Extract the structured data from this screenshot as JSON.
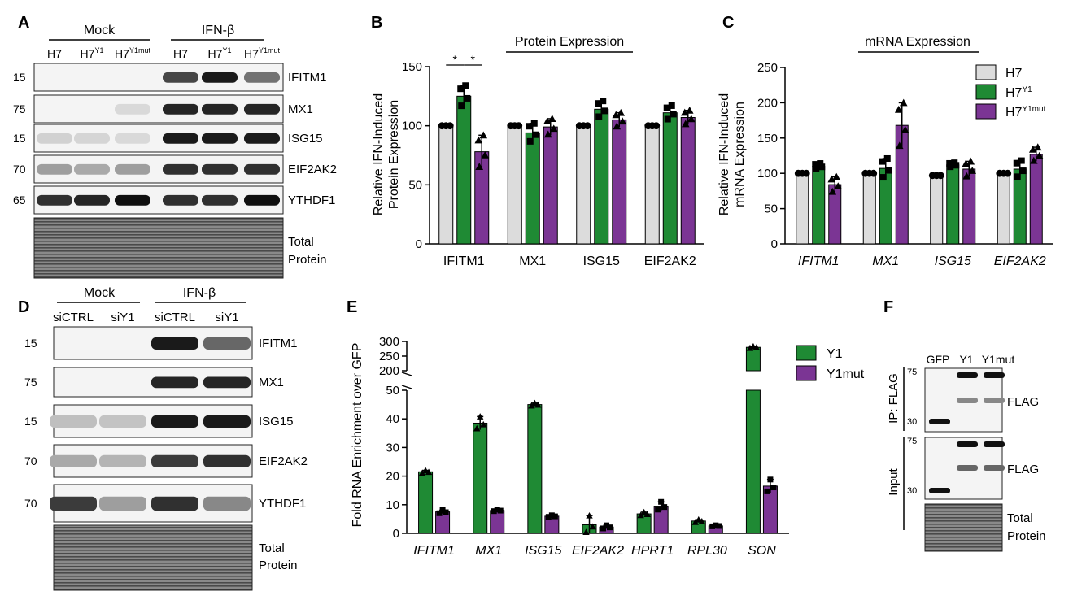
{
  "panels": {
    "A": {
      "letter": "A",
      "group_mock": "Mock",
      "group_ifn": "IFN-β",
      "lanes": [
        {
          "base": "H7",
          "sup": ""
        },
        {
          "base": "H7",
          "sup": "Y1"
        },
        {
          "base": "H7",
          "sup": "Y1mut"
        },
        {
          "base": "H7",
          "sup": ""
        },
        {
          "base": "H7",
          "sup": "Y1"
        },
        {
          "base": "H7",
          "sup": "Y1mut"
        }
      ],
      "blots": [
        {
          "label": "IFITM1",
          "mw": "15"
        },
        {
          "label": "MX1",
          "mw": "75"
        },
        {
          "label": "ISG15",
          "mw": "15"
        },
        {
          "label": "EIF2AK2",
          "mw": "70"
        },
        {
          "label": "YTHDF1",
          "mw": "65"
        },
        {
          "label": "Total Protein",
          "mw": ""
        }
      ]
    },
    "B": {
      "letter": "B"
    },
    "C": {
      "letter": "C"
    },
    "D": {
      "letter": "D",
      "group_mock": "Mock",
      "group_ifn": "IFN-β",
      "lanes": [
        "siCTRL",
        "siY1",
        "siCTRL",
        "siY1"
      ],
      "blots": [
        {
          "label": "IFITM1",
          "mw": "15"
        },
        {
          "label": "MX1",
          "mw": "75"
        },
        {
          "label": "ISG15",
          "mw": "15"
        },
        {
          "label": "EIF2AK2",
          "mw": "70"
        },
        {
          "label": "YTHDF1",
          "mw": "70"
        },
        {
          "label": "Total Protein",
          "mw": ""
        }
      ]
    },
    "E": {
      "letter": "E"
    },
    "F": {
      "letter": "F",
      "lanes": [
        "GFP",
        "Y1",
        "Y1mut"
      ],
      "ip_label": "IP: FLAG",
      "input_label": "Input",
      "blots": [
        {
          "label": "FLAG",
          "mw_top": "75",
          "mw_bottom": "30"
        },
        {
          "label": "FLAG",
          "mw_top": "75",
          "mw_bottom": "30"
        },
        {
          "label": "Total Protein"
        }
      ]
    }
  },
  "chart_data": [
    {
      "panel": "B",
      "type": "bar",
      "title": "Protein Expression",
      "xlabel": "",
      "ylabel": "Relative IFN-Induced Protein Expression",
      "ylim": [
        0,
        150
      ],
      "yticks": [
        0,
        50,
        100,
        150
      ],
      "categories": [
        "IFITM1",
        "MX1",
        "ISG15",
        "EIF2AK2"
      ],
      "italic_categories": false,
      "legend": "none",
      "series": [
        {
          "name": "H7",
          "color": "#dcdcdc",
          "marker": "circle",
          "values": [
            100,
            100,
            100,
            100
          ],
          "errors": [
            0,
            0,
            0,
            0
          ]
        },
        {
          "name": "H7Y1",
          "color": "#1f8a34",
          "marker": "square",
          "values": [
            125,
            94,
            114,
            111
          ],
          "errors": [
            9,
            8,
            7,
            6
          ]
        },
        {
          "name": "H7Y1mut",
          "color": "#7b3594",
          "marker": "triangle",
          "values": [
            78,
            99,
            105,
            107
          ],
          "errors": [
            14,
            7,
            6,
            6
          ]
        }
      ],
      "significance": [
        {
          "label": "*",
          "category": "IFITM1",
          "from": "H7",
          "to": "H7Y1"
        },
        {
          "label": "*",
          "category": "IFITM1",
          "from": "H7Y1",
          "to": "H7Y1mut"
        }
      ]
    },
    {
      "panel": "C",
      "type": "bar",
      "title": "mRNA Expression",
      "xlabel": "",
      "ylabel": "Relative IFN-Induced mRNA Expression",
      "ylim": [
        0,
        250
      ],
      "yticks": [
        0,
        50,
        100,
        150,
        200,
        250
      ],
      "categories": [
        "IFITM1",
        "MX1",
        "ISG15",
        "EIF2AK2"
      ],
      "italic_categories": true,
      "legend": "top-right",
      "series": [
        {
          "name": "H7",
          "legend_base": "H7",
          "legend_sup": "",
          "color": "#dcdcdc",
          "marker": "circle",
          "values": [
            100,
            100,
            97,
            100
          ],
          "errors": [
            0,
            0,
            0,
            0
          ]
        },
        {
          "name": "H7Y1",
          "legend_base": "H7",
          "legend_sup": "Y1",
          "color": "#1f8a34",
          "marker": "square",
          "values": [
            110,
            107,
            112,
            106
          ],
          "errors": [
            4,
            14,
            3,
            12
          ]
        },
        {
          "name": "H7Y1mut",
          "legend_base": "H7",
          "legend_sup": "Y1mut",
          "color": "#7b3594",
          "marker": "triangle",
          "values": [
            84,
            168,
            106,
            127
          ],
          "errors": [
            11,
            32,
            11,
            10
          ]
        }
      ]
    },
    {
      "panel": "E",
      "type": "bar",
      "title": "",
      "xlabel": "",
      "ylabel": "Fold RNA Enrichment over GFP",
      "ylim_lower": [
        0,
        50
      ],
      "ylim_upper": [
        200,
        300
      ],
      "yticks_lower": [
        0,
        10,
        20,
        30,
        40,
        50
      ],
      "yticks_upper": [
        200,
        250,
        300
      ],
      "categories": [
        "IFITM1",
        "MX1",
        "ISG15",
        "EIF2AK2",
        "HPRT1",
        "RPL30",
        "SON"
      ],
      "italic_categories": true,
      "legend": "top-right",
      "series": [
        {
          "name": "Y1",
          "color": "#1f8a34",
          "marker": "triangle",
          "values": [
            21.5,
            38.5,
            45,
            3,
            6.8,
            4.3,
            280
          ],
          "errors": [
            0.5,
            2.3,
            0.5,
            3.2,
            0.6,
            0.5,
            3
          ]
        },
        {
          "name": "Y1mut",
          "color": "#7b3594",
          "marker": "square",
          "values": [
            7.5,
            8.0,
            6.0,
            2.2,
            9.5,
            2.6,
            16.5
          ],
          "errors": [
            0.6,
            0.3,
            0.3,
            0.6,
            1.5,
            0.2,
            2.3
          ]
        }
      ]
    }
  ]
}
